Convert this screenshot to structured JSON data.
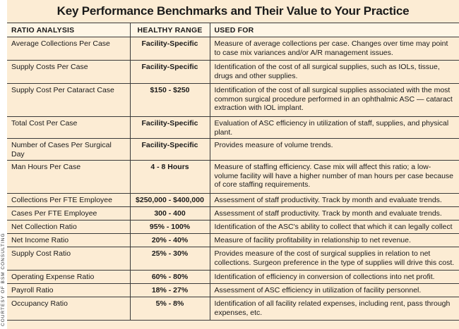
{
  "title": "Key Performance Benchmarks and Their Value to Your Practice",
  "headers": {
    "ratio": "RATIO ANALYSIS",
    "range": "HEALTHY RANGE",
    "used": "USED FOR"
  },
  "rows": [
    {
      "ratio": "Average Collections Per Case",
      "range": "Facility-Specific",
      "used": "Measure of average collections per case. Changes over time may point to case mix variances and/or A/R management issues."
    },
    {
      "ratio": "Supply Costs Per Case",
      "range": "Facility-Specific",
      "used": "Identification of the cost of all surgical supplies, such as IOLs, tissue, drugs and other supplies."
    },
    {
      "ratio": "Supply Cost Per Cataract Case",
      "range": "$150 - $250",
      "used": "Identification of the cost of all surgical supplies associated with the most common surgical procedure performed in an ophthalmic ASC — cataract extraction with IOL implant."
    },
    {
      "ratio": "Total Cost Per Case",
      "range": "Facility-Specific",
      "used": "Evaluation of ASC efficiency in utilization of staff, supplies, and physical plant."
    },
    {
      "ratio": "Number of Cases Per Surgical Day",
      "range": "Facility-Specific",
      "used": "Provides measure of volume trends."
    },
    {
      "ratio": "Man Hours Per Case",
      "range": "4 - 8 Hours",
      "used": "Measure of staffing efficiency. Case mix will affect this ratio; a low-volume facility will have a higher number of man hours per case because of core staffing requirements."
    },
    {
      "ratio": "Collections Per FTE Employee",
      "range": "$250,000 - $400,000",
      "used": "Assessment of staff productivity. Track by month and evaluate trends."
    },
    {
      "ratio": "Cases Per FTE Employee",
      "range": "300 - 400",
      "used": "Assessment of staff productivity. Track by month and evaluate trends."
    },
    {
      "ratio": "Net Collection Ratio",
      "range": "95% - 100%",
      "used": "Identification of the ASC's ability to collect that which it can legally collect"
    },
    {
      "ratio": "Net Income Ratio",
      "range": "20% - 40%",
      "used": "Measure of facility profitability in relationship to net revenue."
    },
    {
      "ratio": "Supply Cost Ratio",
      "range": "25% - 30%",
      "used": "Provides measure of the cost of surgical supplies in relation to net collections. Surgeon preference in the type of supplies will drive this cost."
    },
    {
      "ratio": "Operating Expense Ratio",
      "range": "60% - 80%",
      "used": "Identification of efficiency in conversion of collections into net profit."
    },
    {
      "ratio": "Payroll Ratio",
      "range": "18% - 27%",
      "used": "Assessment of ASC efficiency in utilization of facility personnel."
    },
    {
      "ratio": "Occupancy Ratio",
      "range": "5% - 8%",
      "used": "Identification of all facility related expenses, including rent, pass through expenses, etc."
    }
  ],
  "credit": "COURTESY OF BSM CONSULTING",
  "colors": {
    "background": "#fcecd4",
    "header_background": "#fff6e6",
    "rule": "#3a3a3a"
  }
}
